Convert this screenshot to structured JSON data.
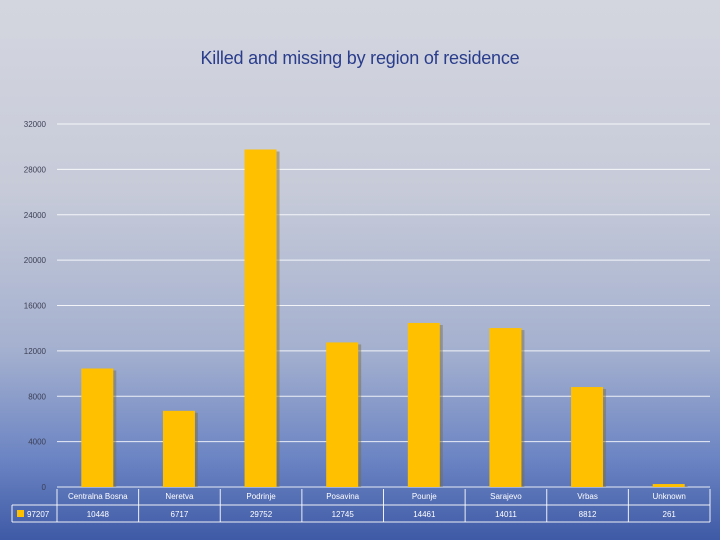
{
  "chart_data": {
    "type": "bar",
    "title": "Killed and missing by region of residence",
    "categories": [
      "Centralna Bosna",
      "Neretva",
      "Podrinje",
      "Posavina",
      "Pounje",
      "Sarajevo",
      "Vrbas",
      "Unknown"
    ],
    "series": [
      {
        "name": "97207",
        "values": [
          10448,
          6717,
          29752,
          12745,
          14461,
          14011,
          8812,
          261
        ]
      }
    ],
    "data_table": [
      "10448",
      "6717",
      "29752",
      "12745",
      "14461",
      "14011",
      "8812",
      "261"
    ],
    "yticks": [
      "0",
      "4000",
      "8000",
      "12000",
      "16000",
      "20000",
      "24000",
      "28000",
      "32000"
    ],
    "ylim": [
      0,
      32000
    ],
    "grid": true,
    "legend": "bottom-left data table",
    "colors": {
      "bar": "#ffc000",
      "bar_shadow": "#7a6a3a",
      "grid": "#ffffff",
      "text_light": "#ffffff"
    }
  }
}
